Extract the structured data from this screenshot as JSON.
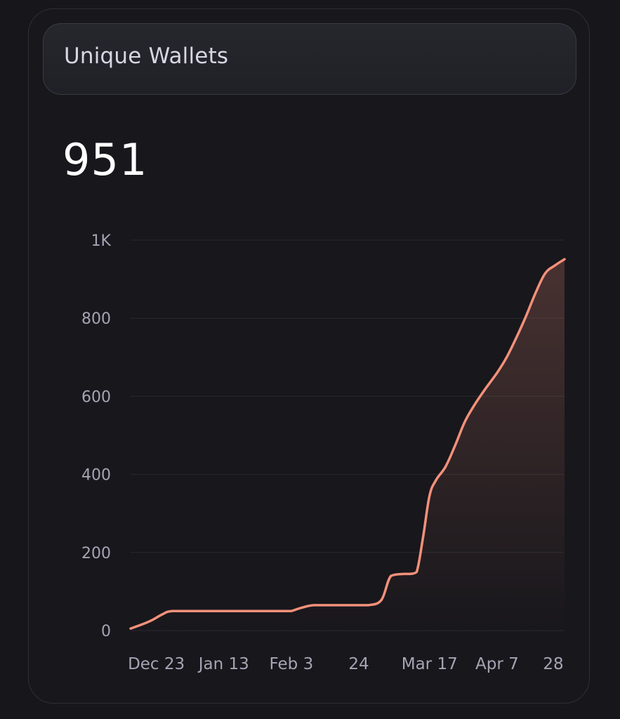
{
  "card": {
    "title": "Unique Wallets",
    "value": "951"
  },
  "colors": {
    "background": "#17161b",
    "line": "#f4917a",
    "grid": "#2a2930",
    "tick_text": "#a6a4b4"
  },
  "chart_data": {
    "type": "area",
    "title": "Unique Wallets",
    "xlabel": "",
    "ylabel": "",
    "ylim": [
      0,
      1000
    ],
    "y_ticks": [
      0,
      200,
      400,
      600,
      800,
      1000
    ],
    "y_tick_labels": [
      "0",
      "200",
      "400",
      "600",
      "800",
      "1K"
    ],
    "x_ticks": [
      "2023-12-23",
      "2024-01-13",
      "2024-02-03",
      "2024-02-24",
      "2024-03-17",
      "2024-04-07",
      "2024-04-28"
    ],
    "x_tick_labels": [
      "Dec 23",
      "Jan 13",
      "Feb 3",
      "24",
      "Mar 17",
      "Apr 7",
      "28"
    ],
    "xlim": [
      "2023-12-15",
      "2024-04-28"
    ],
    "grid": true,
    "legend": "none",
    "series": [
      {
        "x": [
          "2023-12-15",
          "2023-12-19",
          "2023-12-22",
          "2023-12-25",
          "2023-12-28",
          "2024-01-05",
          "2024-01-15",
          "2024-01-25",
          "2024-02-01",
          "2024-02-03",
          "2024-02-06",
          "2024-02-10",
          "2024-02-17",
          "2024-02-24",
          "2024-02-27",
          "2024-03-02",
          "2024-03-05",
          "2024-03-09",
          "2024-03-11",
          "2024-03-13",
          "2024-03-15",
          "2024-03-17",
          "2024-03-19",
          "2024-03-22",
          "2024-03-25",
          "2024-03-28",
          "2024-03-31",
          "2024-04-03",
          "2024-04-07",
          "2024-04-10",
          "2024-04-13",
          "2024-04-16",
          "2024-04-19",
          "2024-04-22",
          "2024-04-25",
          "2024-04-28"
        ],
        "values": [
          5,
          17,
          28,
          42,
          50,
          50,
          50,
          50,
          50,
          50,
          58,
          65,
          65,
          65,
          65,
          78,
          140,
          145,
          145,
          150,
          240,
          345,
          385,
          420,
          475,
          535,
          578,
          615,
          660,
          700,
          750,
          805,
          865,
          915,
          935,
          951
        ]
      }
    ]
  }
}
